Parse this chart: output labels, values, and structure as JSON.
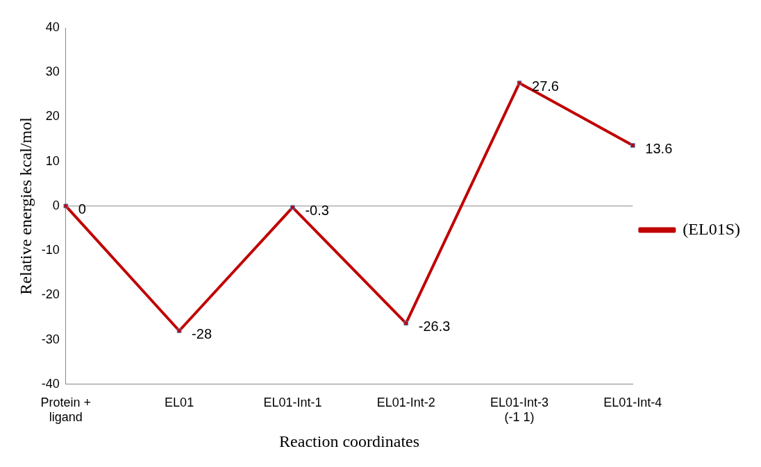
{
  "chart_data": {
    "type": "line",
    "xlabel": "Reaction coordinates",
    "ylabel": "Relative energies kcal/mol",
    "categories": [
      "Protein + ligand",
      "EL01",
      "EL01-Int-1",
      "EL01-Int-2",
      "EL01-Int-3 (-1 1)",
      "EL01-Int-4"
    ],
    "series": [
      {
        "name": "(EL01S)",
        "color": "#c00000",
        "values": [
          0,
          -28,
          -0.3,
          -26.3,
          27.6,
          13.6
        ]
      }
    ],
    "ylim": [
      -40,
      40
    ],
    "yticks": [
      -40,
      -30,
      -20,
      -10,
      0,
      10,
      20,
      30,
      40
    ],
    "ref_lines": [
      {
        "axis": "y",
        "value": 0,
        "color": "#888888"
      }
    ],
    "grid": false,
    "legend": "right",
    "marker": "square",
    "line_style": "solid",
    "data_labels": true
  }
}
